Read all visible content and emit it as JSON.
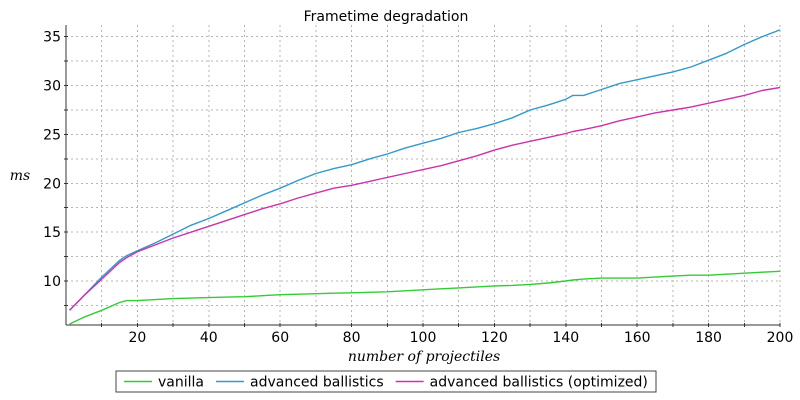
{
  "chart_data": {
    "type": "line",
    "title": "Frametime degradation",
    "xlabel": "number of projectiles",
    "ylabel": "ms",
    "xlim": [
      0,
      200
    ],
    "ylim": [
      5.5,
      36.2
    ],
    "x_ticks": [
      20,
      40,
      60,
      80,
      100,
      120,
      140,
      160,
      180,
      200
    ],
    "y_ticks": [
      10,
      15,
      20,
      25,
      30,
      35
    ],
    "grid": true,
    "legend_position": "bottom",
    "x": [
      1,
      5,
      10,
      15,
      17,
      20,
      25,
      30,
      35,
      40,
      45,
      50,
      55,
      60,
      65,
      70,
      75,
      80,
      85,
      90,
      95,
      100,
      105,
      110,
      115,
      120,
      125,
      130,
      135,
      140,
      142,
      145,
      150,
      155,
      160,
      165,
      170,
      175,
      180,
      185,
      190,
      195,
      200
    ],
    "series": [
      {
        "name": "vanilla",
        "color": "#33cc33",
        "values": [
          5.6,
          6.3,
          7.0,
          7.8,
          8.0,
          8.0,
          8.1,
          8.2,
          8.25,
          8.3,
          8.35,
          8.4,
          8.5,
          8.6,
          8.65,
          8.7,
          8.75,
          8.8,
          8.85,
          8.9,
          9.0,
          9.1,
          9.2,
          9.3,
          9.4,
          9.5,
          9.55,
          9.65,
          9.8,
          10.0,
          10.1,
          10.2,
          10.3,
          10.3,
          10.3,
          10.4,
          10.5,
          10.6,
          10.6,
          10.7,
          10.8,
          10.9,
          11.0
        ]
      },
      {
        "name": "advanced ballistics",
        "color": "#3399cc",
        "values": [
          7.0,
          8.5,
          10.4,
          12.1,
          12.6,
          13.1,
          13.9,
          14.8,
          15.7,
          16.4,
          17.2,
          18.0,
          18.8,
          19.5,
          20.3,
          21.0,
          21.5,
          21.9,
          22.5,
          23.0,
          23.6,
          24.1,
          24.6,
          25.2,
          25.6,
          26.1,
          26.7,
          27.5,
          28.0,
          28.6,
          29.0,
          29.0,
          29.6,
          30.2,
          30.6,
          31.0,
          31.4,
          31.9,
          32.6,
          33.3,
          34.2,
          35.0,
          35.7
        ]
      },
      {
        "name": "advanced ballistics (optimized)",
        "color": "#cc33aa",
        "values": [
          7.0,
          8.5,
          10.2,
          11.9,
          12.4,
          13.0,
          13.7,
          14.4,
          15.0,
          15.6,
          16.2,
          16.8,
          17.4,
          17.9,
          18.5,
          19.0,
          19.5,
          19.8,
          20.2,
          20.6,
          21.0,
          21.4,
          21.8,
          22.3,
          22.8,
          23.4,
          23.9,
          24.3,
          24.7,
          25.1,
          25.3,
          25.5,
          25.9,
          26.4,
          26.8,
          27.2,
          27.5,
          27.8,
          28.2,
          28.6,
          29.0,
          29.5,
          29.8
        ]
      }
    ]
  }
}
